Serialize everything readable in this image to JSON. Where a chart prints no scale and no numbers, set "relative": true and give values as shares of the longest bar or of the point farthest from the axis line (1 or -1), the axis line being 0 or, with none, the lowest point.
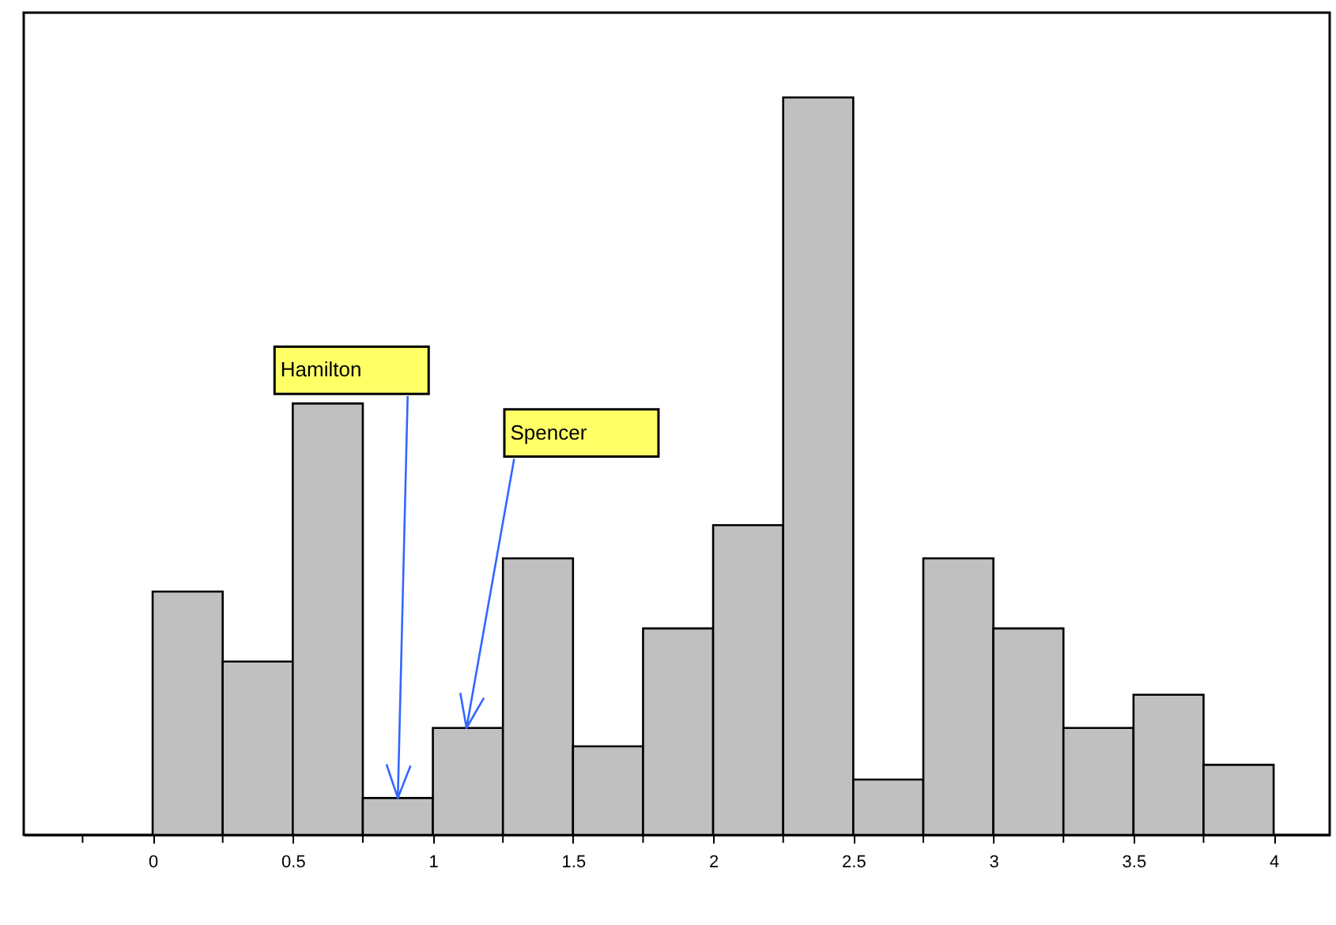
{
  "chart_data": {
    "type": "bar",
    "relative": true,
    "x": [
      0.125,
      0.375,
      0.625,
      0.875,
      1.125,
      1.375,
      1.625,
      1.875,
      2.125,
      2.375,
      2.625,
      2.875,
      3.125,
      3.375,
      3.625,
      3.875
    ],
    "values": [
      0.33,
      0.235,
      0.585,
      0.05,
      0.145,
      0.375,
      0.12,
      0.28,
      0.42,
      1,
      0.075,
      0.375,
      0.28,
      0.145,
      0.19,
      0.095
    ],
    "color": "#c0c0c0",
    "xlim": [
      -0.46,
      4.2
    ],
    "xticks": [
      {
        "value": -0.25,
        "label": null
      },
      0,
      {
        "value": 0.25,
        "label": null
      },
      0.5,
      {
        "value": 0.75,
        "label": null
      },
      1,
      {
        "value": 1.25,
        "label": null
      },
      1.5,
      {
        "value": 1.75,
        "label": null
      },
      2,
      {
        "value": 2.25,
        "label": null
      },
      2.5,
      {
        "value": 2.75,
        "label": null
      },
      3,
      {
        "value": 3.25,
        "label": null
      },
      3.5,
      {
        "value": 3.75,
        "label": null
      },
      4
    ],
    "annotations": [
      "Hamilton",
      "Spencer"
    ],
    "grid": false
  }
}
